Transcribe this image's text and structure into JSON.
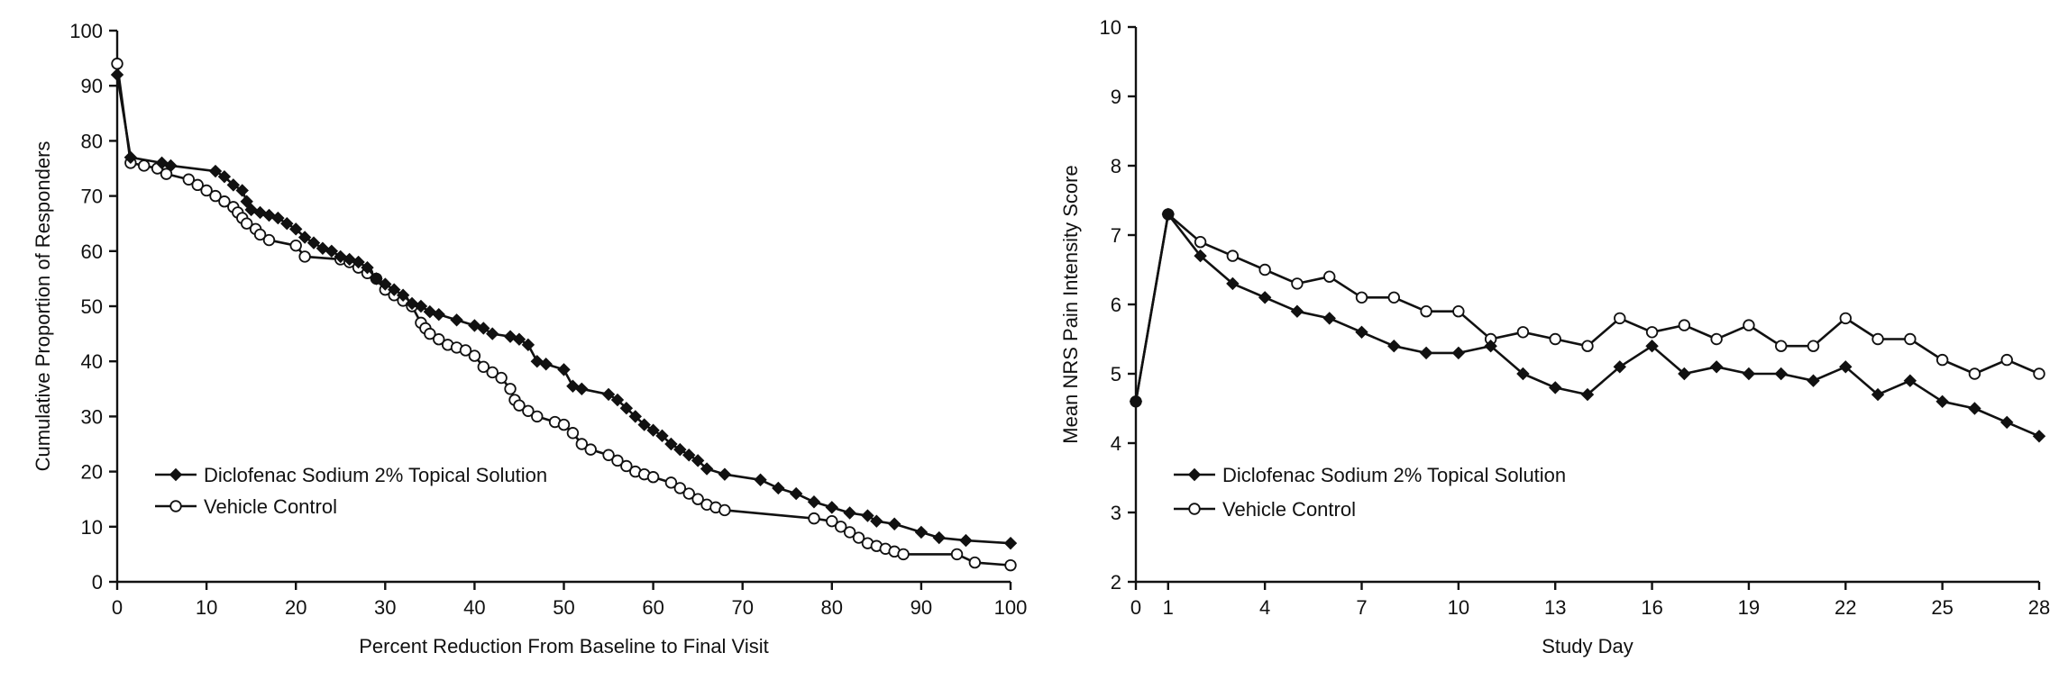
{
  "chart_data": [
    {
      "type": "line",
      "title": "",
      "xlabel": "Percent Reduction From Baseline to Final Visit",
      "ylabel": "Cumulative Proportion of Responders",
      "xlim": [
        0,
        100
      ],
      "ylim": [
        0,
        100
      ],
      "xticks": [
        "0",
        "10",
        "20",
        "30",
        "40",
        "50",
        "60",
        "70",
        "80",
        "90",
        "100"
      ],
      "yticks": [
        "0",
        "10",
        "20",
        "30",
        "40",
        "50",
        "60",
        "70",
        "80",
        "90",
        "100"
      ],
      "grid": false,
      "legend_position": "bottom-left",
      "series": [
        {
          "name": "Diclofenac Sodium 2% Topical Solution",
          "marker": "diamond-filled",
          "x": [
            0,
            1.5,
            5,
            6,
            11,
            12,
            13,
            14,
            14.5,
            15,
            16,
            17,
            18,
            19,
            20,
            21,
            22,
            23,
            24,
            25,
            26,
            27,
            28,
            29,
            30,
            31,
            32,
            33,
            34,
            35,
            36,
            38,
            40,
            41,
            42,
            44,
            45,
            46,
            47,
            48,
            50,
            51,
            52,
            55,
            56,
            57,
            58,
            59,
            60,
            61,
            62,
            63,
            64,
            65,
            66,
            68,
            72,
            74,
            76,
            78,
            80,
            82,
            84,
            85,
            87,
            90,
            92,
            95,
            100
          ],
          "y": [
            92,
            77,
            76,
            75.5,
            74.5,
            73.5,
            72,
            71,
            69,
            67.5,
            67,
            66.5,
            66,
            65,
            64,
            62.5,
            61.5,
            60.5,
            60,
            59,
            58.5,
            58,
            57,
            55,
            54,
            53,
            52,
            50.5,
            50,
            49,
            48.5,
            47.5,
            46.5,
            46,
            45,
            44.5,
            44,
            43,
            40,
            39.5,
            38.5,
            35.5,
            35,
            34,
            33,
            31.5,
            30,
            28.5,
            27.5,
            26.5,
            25,
            24,
            23,
            22,
            20.5,
            19.5,
            18.5,
            17,
            16,
            14.5,
            13.5,
            12.5,
            12,
            11,
            10.5,
            9,
            8,
            7.5,
            7
          ]
        },
        {
          "name": "Vehicle Control",
          "marker": "circle-open",
          "x": [
            0,
            1.5,
            3,
            4.5,
            5.5,
            8,
            9,
            10,
            11,
            12,
            13,
            13.5,
            14,
            14.5,
            15.5,
            16,
            17,
            20,
            21,
            25,
            26,
            27,
            28,
            29,
            30,
            31,
            32,
            33,
            34,
            34.5,
            35,
            36,
            37,
            38,
            39,
            40,
            41,
            42,
            43,
            44,
            44.5,
            45,
            46,
            47,
            49,
            50,
            51,
            52,
            53,
            55,
            56,
            57,
            58,
            59,
            60,
            62,
            63,
            64,
            65,
            66,
            67,
            68,
            78,
            80,
            81,
            82,
            83,
            84,
            85,
            86,
            87,
            88,
            94,
            96,
            100
          ],
          "y": [
            94,
            76,
            75.5,
            75,
            74,
            73,
            72,
            71,
            70,
            69,
            68,
            67,
            66,
            65,
            64,
            63,
            62,
            61,
            59,
            58.5,
            58,
            57,
            56,
            55,
            53,
            52,
            51,
            50,
            47,
            46,
            45,
            44,
            43,
            42.5,
            42,
            41,
            39,
            38,
            37,
            35,
            33,
            32,
            31,
            30,
            29,
            28.5,
            27,
            25,
            24,
            23,
            22,
            21,
            20,
            19.5,
            19,
            18,
            17,
            16,
            15,
            14,
            13.5,
            13,
            11.5,
            11,
            10,
            9,
            8,
            7,
            6.5,
            6,
            5.5,
            5,
            5,
            3.5,
            3
          ]
        }
      ]
    },
    {
      "type": "line",
      "title": "",
      "xlabel": "Study Day",
      "ylabel": "Mean NRS Pain Intensity Score",
      "xlim": [
        0,
        28
      ],
      "ylim": [
        2,
        10
      ],
      "xticks": [
        "0",
        "1",
        "4",
        "7",
        "10",
        "13",
        "16",
        "19",
        "22",
        "25",
        "28"
      ],
      "yticks": [
        "2",
        "3",
        "4",
        "5",
        "6",
        "7",
        "8",
        "9",
        "10"
      ],
      "grid": false,
      "legend_position": "bottom-left",
      "series": [
        {
          "name": "Diclofenac Sodium 2% Topical Solution",
          "marker": "diamond-filled",
          "x": [
            0,
            1,
            2,
            3,
            4,
            5,
            6,
            7,
            8,
            9,
            10,
            11,
            12,
            13,
            14,
            15,
            16,
            17,
            18,
            19,
            20,
            21,
            22,
            23,
            24,
            25,
            26,
            27,
            28
          ],
          "y": [
            4.6,
            7.3,
            6.7,
            6.3,
            6.1,
            5.9,
            5.8,
            5.6,
            5.4,
            5.3,
            5.3,
            5.4,
            5.0,
            4.8,
            4.7,
            5.1,
            5.4,
            5.0,
            5.1,
            5.0,
            5.0,
            4.9,
            5.1,
            4.7,
            4.9,
            4.6,
            4.5,
            4.3,
            4.1
          ]
        },
        {
          "name": "Vehicle Control",
          "marker": "circle-open",
          "x": [
            0,
            1,
            2,
            3,
            4,
            5,
            6,
            7,
            8,
            9,
            10,
            11,
            12,
            13,
            14,
            15,
            16,
            17,
            18,
            19,
            20,
            21,
            22,
            23,
            24,
            25,
            26,
            27,
            28
          ],
          "y": [
            4.6,
            7.3,
            6.9,
            6.7,
            6.5,
            6.3,
            6.4,
            6.1,
            6.1,
            5.9,
            5.9,
            5.5,
            5.6,
            5.5,
            5.4,
            5.8,
            5.6,
            5.7,
            5.5,
            5.7,
            5.4,
            5.4,
            5.8,
            5.5,
            5.5,
            5.2,
            5.0,
            5.2,
            5.0
          ]
        }
      ]
    }
  ]
}
